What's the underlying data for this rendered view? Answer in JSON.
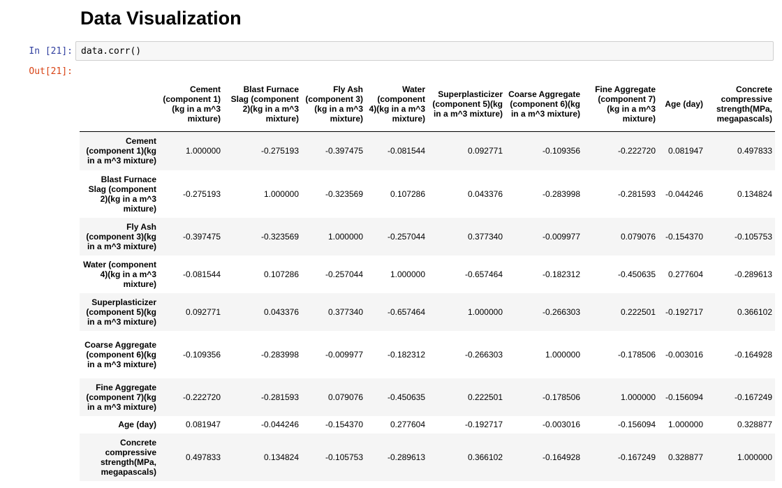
{
  "page": {
    "heading": "Data Visualization",
    "in_prompt": "In [21]:",
    "out_prompt": "Out[21]:",
    "code": "data.corr()"
  },
  "table": {
    "columns": [
      "Cement (component 1)(kg in a m^3 mixture)",
      "Blast Furnace Slag (component 2)(kg in a m^3 mixture)",
      "Fly Ash (component 3)(kg in a m^3 mixture)",
      "Water (component 4)(kg in a m^3 mixture)",
      "Superplasticizer (component 5)(kg in a m^3 mixture)",
      "Coarse Aggregate (component 6)(kg in a m^3 mixture)",
      "Fine Aggregate (component 7)(kg in a m^3 mixture)",
      "Age (day)",
      "Concrete compressive strength(MPa, megapascals)"
    ],
    "rows": [
      {
        "label": "Cement (component 1)(kg in a m^3 mixture)",
        "values": [
          "1.000000",
          "-0.275193",
          "-0.397475",
          "-0.081544",
          "0.092771",
          "-0.109356",
          "-0.222720",
          "0.081947",
          "0.497833"
        ]
      },
      {
        "label": "Blast Furnace Slag (component 2)(kg in a m^3 mixture)",
        "values": [
          "-0.275193",
          "1.000000",
          "-0.323569",
          "0.107286",
          "0.043376",
          "-0.283998",
          "-0.281593",
          "-0.044246",
          "0.134824"
        ]
      },
      {
        "label": "Fly Ash (component 3)(kg in a m^3 mixture)",
        "values": [
          "-0.397475",
          "-0.323569",
          "1.000000",
          "-0.257044",
          "0.377340",
          "-0.009977",
          "0.079076",
          "-0.154370",
          "-0.105753"
        ]
      },
      {
        "label": "Water (component 4)(kg in a m^3 mixture)",
        "values": [
          "-0.081544",
          "0.107286",
          "-0.257044",
          "1.000000",
          "-0.657464",
          "-0.182312",
          "-0.450635",
          "0.277604",
          "-0.289613"
        ]
      },
      {
        "label": "Superplasticizer (component 5)(kg in a m^3 mixture)",
        "values": [
          "0.092771",
          "0.043376",
          "0.377340",
          "-0.657464",
          "1.000000",
          "-0.266303",
          "0.222501",
          "-0.192717",
          "0.366102"
        ]
      },
      {
        "label": "Coarse Aggregate (component 6)(kg in a m^3 mixture)",
        "values": [
          "-0.109356",
          "-0.283998",
          "-0.009977",
          "-0.182312",
          "-0.266303",
          "1.000000",
          "-0.178506",
          "-0.003016",
          "-0.164928"
        ]
      },
      {
        "label": "Fine Aggregate (component 7)(kg in a m^3 mixture)",
        "values": [
          "-0.222720",
          "-0.281593",
          "0.079076",
          "-0.450635",
          "0.222501",
          "-0.178506",
          "1.000000",
          "-0.156094",
          "-0.167249"
        ]
      },
      {
        "label": "Age (day)",
        "values": [
          "0.081947",
          "-0.044246",
          "-0.154370",
          "0.277604",
          "-0.192717",
          "-0.003016",
          "-0.156094",
          "1.000000",
          "0.328877"
        ]
      },
      {
        "label": "Concrete compressive strength(MPa, megapascals)",
        "values": [
          "0.497833",
          "0.134824",
          "-0.105753",
          "-0.289613",
          "0.366102",
          "-0.164928",
          "-0.167249",
          "0.328877",
          "1.000000"
        ]
      }
    ]
  },
  "colors": {
    "in_prompt": "#303f9f",
    "out_prompt": "#d84315",
    "code_bg": "#f7f7f7",
    "row_stripe": "#f5f5f5"
  }
}
